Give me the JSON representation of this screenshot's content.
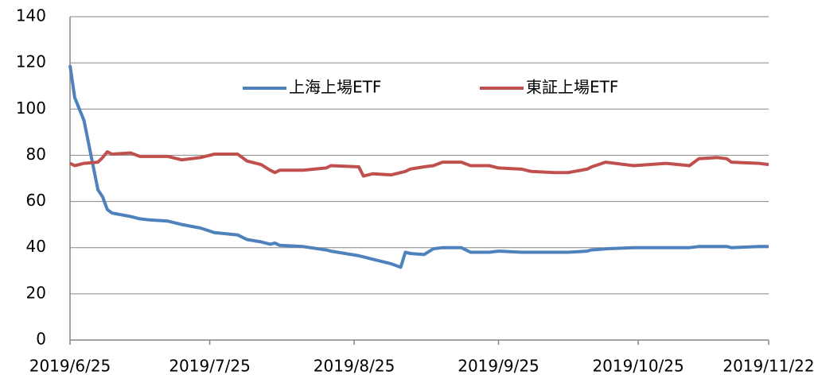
{
  "chart_data": {
    "type": "line",
    "x": [
      "2019/6/25",
      "2019/6/26",
      "2019/6/28",
      "2019/7/1",
      "2019/7/2",
      "2019/7/3",
      "2019/7/4",
      "2019/7/8",
      "2019/7/10",
      "2019/7/12",
      "2019/7/16",
      "2019/7/19",
      "2019/7/23",
      "2019/7/26",
      "2019/7/31",
      "2019/8/2",
      "2019/8/5",
      "2019/8/7",
      "2019/8/8",
      "2019/8/9",
      "2019/8/14",
      "2019/8/19",
      "2019/8/20",
      "2019/8/26",
      "2019/8/27",
      "2019/8/29",
      "2019/9/2",
      "2019/9/4",
      "2019/9/5",
      "2019/9/6",
      "2019/9/9",
      "2019/9/11",
      "2019/9/13",
      "2019/9/17",
      "2019/9/19",
      "2019/9/23",
      "2019/9/25",
      "2019/9/30",
      "2019/10/2",
      "2019/10/7",
      "2019/10/10",
      "2019/10/14",
      "2019/10/15",
      "2019/10/18",
      "2019/10/24",
      "2019/10/31",
      "2019/11/5",
      "2019/11/7",
      "2019/11/11",
      "2019/11/13",
      "2019/11/14",
      "2019/11/20",
      "2019/11/22"
    ],
    "series": [
      {
        "name": "上海上場ETF",
        "color": "#4f81bd",
        "values": [
          119,
          105,
          95,
          65,
          62,
          56.5,
          55,
          53.5,
          52.5,
          52,
          51.5,
          50,
          48.5,
          46.5,
          45.5,
          43.5,
          42.5,
          41.5,
          42,
          41,
          40.5,
          39,
          38.5,
          36.5,
          36,
          35,
          33,
          31.5,
          38,
          37.5,
          37,
          39.5,
          40,
          40,
          38,
          38,
          38.5,
          38,
          38,
          38,
          38,
          38.5,
          39,
          39.5,
          40,
          40,
          40,
          40.5,
          40.5,
          40.5,
          40,
          40.5,
          40.5
        ]
      },
      {
        "name": "東証上場ETF",
        "color": "#c0504d",
        "values": [
          76.5,
          75.5,
          76.5,
          77,
          79,
          81.5,
          80.5,
          81,
          79.5,
          79.5,
          79.5,
          78,
          79,
          80.5,
          80.5,
          77.5,
          76,
          73.5,
          72.5,
          73.5,
          73.5,
          74.5,
          75.5,
          75,
          71,
          72,
          71.5,
          72.5,
          73,
          74,
          75,
          75.5,
          77,
          77,
          75.5,
          75.5,
          74.5,
          74,
          73,
          72.5,
          72.5,
          74,
          75,
          77,
          75.5,
          76.5,
          75.5,
          78.5,
          79,
          78.5,
          77,
          76.5,
          76
        ]
      }
    ],
    "xlim": [
      "2019/6/25",
      "2019/11/22"
    ],
    "xticks": [
      "2019/6/25",
      "2019/7/25",
      "2019/8/25",
      "2019/9/25",
      "2019/10/25",
      "2019/11/22"
    ],
    "ylim": [
      0,
      140
    ],
    "yticks": [
      0,
      20,
      40,
      60,
      80,
      100,
      120,
      140
    ],
    "grid": true,
    "legend": "top"
  }
}
